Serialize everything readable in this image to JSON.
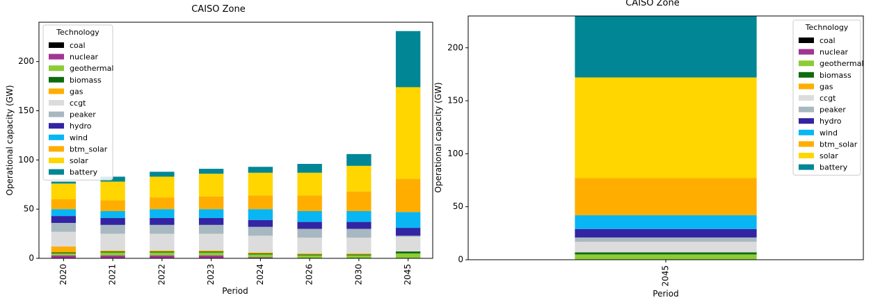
{
  "legend_title": "Technology",
  "technologies": [
    "coal",
    "nuclear",
    "geothermal",
    "biomass",
    "gas",
    "ccgt",
    "peaker",
    "hydro",
    "wind",
    "btm_solar",
    "solar",
    "battery"
  ],
  "colors": {
    "coal": "#000000",
    "nuclear": "#a13593",
    "geothermal": "#8ccc35",
    "biomass": "#0e6b0e",
    "gas": "#ffae00",
    "ccgt": "#dcdcdc",
    "peaker": "#a7b8c0",
    "hydro": "#3324a3",
    "wind": "#09b6f3",
    "btm_solar": "#ffae00",
    "solar": "#ffd600",
    "battery": "#008695"
  },
  "chart_data": [
    {
      "type": "bar",
      "stacked": true,
      "title": "CAISO Zone",
      "xlabel": "Period",
      "ylabel": "Operational capacity (GW)",
      "ylim": [
        0,
        240
      ],
      "yticks": [
        0,
        50,
        100,
        150,
        200
      ],
      "legend_position": "upper-left",
      "grid": false,
      "categories": [
        "2020",
        "2021",
        "2022",
        "2023",
        "2024",
        "2026",
        "2030",
        "2045"
      ],
      "series": [
        {
          "name": "coal",
          "values": [
            0,
            0,
            0,
            0,
            0,
            0,
            0,
            0
          ]
        },
        {
          "name": "nuclear",
          "values": [
            3,
            3,
            3,
            3,
            1,
            0,
            0,
            0
          ]
        },
        {
          "name": "geothermal",
          "values": [
            2,
            3,
            3,
            3,
            3,
            3,
            3,
            5
          ]
        },
        {
          "name": "biomass",
          "values": [
            1,
            1,
            1,
            1,
            1,
            1,
            1,
            2
          ]
        },
        {
          "name": "gas",
          "values": [
            6,
            1,
            1,
            1,
            1,
            1,
            1,
            0
          ]
        },
        {
          "name": "ccgt",
          "values": [
            15,
            17,
            17,
            17,
            17,
            16,
            16,
            15
          ]
        },
        {
          "name": "peaker",
          "values": [
            9,
            9,
            9,
            9,
            9,
            9,
            9,
            1
          ]
        },
        {
          "name": "hydro",
          "values": [
            7,
            7,
            7,
            7,
            7,
            7,
            7,
            8
          ]
        },
        {
          "name": "wind",
          "values": [
            7,
            7,
            9,
            9,
            11,
            11,
            11,
            16
          ]
        },
        {
          "name": "btm_solar",
          "values": [
            10,
            11,
            12,
            13,
            14,
            16,
            20,
            34
          ]
        },
        {
          "name": "solar",
          "values": [
            16,
            19,
            21,
            23,
            23,
            23,
            26,
            93
          ]
        },
        {
          "name": "battery",
          "values": [
            2,
            5,
            5,
            5,
            6,
            9,
            12,
            57
          ]
        }
      ]
    },
    {
      "type": "bar",
      "stacked": true,
      "title": "CAISO Zone",
      "xlabel": "Period",
      "ylabel": "Operational capacity (GW)",
      "ylim": [
        0,
        230
      ],
      "yticks": [
        0,
        50,
        100,
        150,
        200
      ],
      "legend_position": "upper-right",
      "grid": false,
      "categories": [
        "2045"
      ],
      "series": [
        {
          "name": "coal",
          "values": [
            0
          ]
        },
        {
          "name": "nuclear",
          "values": [
            0
          ]
        },
        {
          "name": "geothermal",
          "values": [
            5
          ]
        },
        {
          "name": "biomass",
          "values": [
            2
          ]
        },
        {
          "name": "gas",
          "values": [
            0
          ]
        },
        {
          "name": "ccgt",
          "values": [
            10
          ]
        },
        {
          "name": "peaker",
          "values": [
            4
          ]
        },
        {
          "name": "hydro",
          "values": [
            8
          ]
        },
        {
          "name": "wind",
          "values": [
            13
          ]
        },
        {
          "name": "btm_solar",
          "values": [
            35
          ]
        },
        {
          "name": "solar",
          "values": [
            95
          ]
        },
        {
          "name": "battery",
          "values": [
            58
          ]
        }
      ]
    }
  ]
}
